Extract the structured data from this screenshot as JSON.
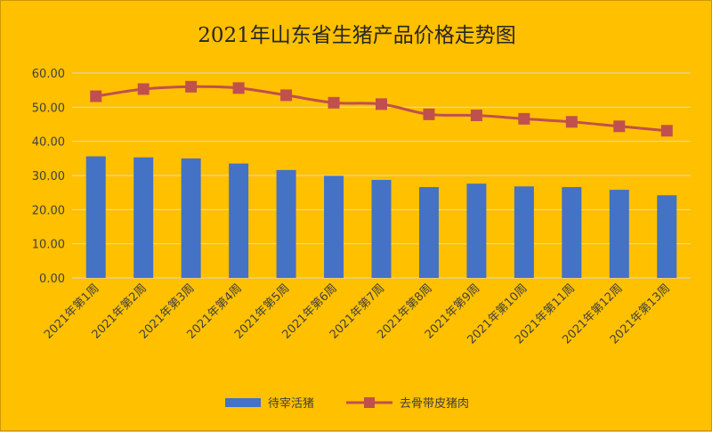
{
  "chart_data": {
    "type": "bar",
    "title": "2021年山东省生猪产品价格走势图",
    "categories": [
      "2021年第1周",
      "2021年第2周",
      "2021年第3周",
      "2021年第4周",
      "2021年第5周",
      "2021年第6周",
      "2021年第7周",
      "2021年第8周",
      "2021年第9周",
      "2021年第10周",
      "2021年第11周",
      "2021年第12周",
      "2021年第13周"
    ],
    "series": [
      {
        "name": "待宰活猪",
        "type": "bar",
        "color": "#4472c4",
        "values": [
          35.6,
          35.3,
          35.0,
          33.5,
          31.6,
          29.9,
          28.7,
          26.6,
          27.6,
          26.8,
          26.6,
          25.8,
          24.2
        ]
      },
      {
        "name": "去骨带皮猪肉",
        "type": "line",
        "marker": "square",
        "color": "#c0504d",
        "values": [
          53.2,
          55.3,
          56.0,
          55.6,
          53.5,
          51.3,
          50.9,
          47.9,
          47.6,
          46.6,
          45.7,
          44.4,
          43.1
        ]
      }
    ],
    "ylim": [
      0,
      60
    ],
    "yticks": [
      "0.00",
      "10.00",
      "20.00",
      "30.00",
      "40.00",
      "50.00",
      "60.00"
    ],
    "grid": true,
    "legend_position": "bottom",
    "background_color": "#ffc000"
  }
}
